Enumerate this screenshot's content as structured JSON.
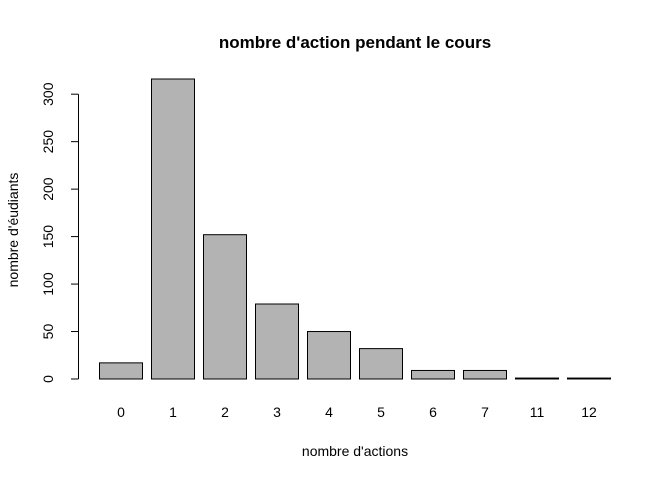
{
  "chart_data": {
    "type": "bar",
    "title": "nombre d'action pendant le cours",
    "xlabel": "nombre d'actions",
    "ylabel": "nombre d'éudiants",
    "categories": [
      "0",
      "1",
      "2",
      "3",
      "4",
      "5",
      "6",
      "7",
      "11",
      "12"
    ],
    "values": [
      17,
      316,
      152,
      79,
      50,
      32,
      9,
      9,
      1,
      1
    ],
    "ylim": [
      0,
      316
    ],
    "yticks": [
      0,
      50,
      100,
      150,
      200,
      250,
      300
    ],
    "grid": false,
    "legend": "none",
    "colors": {
      "bar_fill": "#b3b3b3",
      "bar_stroke": "#000000",
      "axis": "#000000",
      "background": "#ffffff"
    }
  }
}
